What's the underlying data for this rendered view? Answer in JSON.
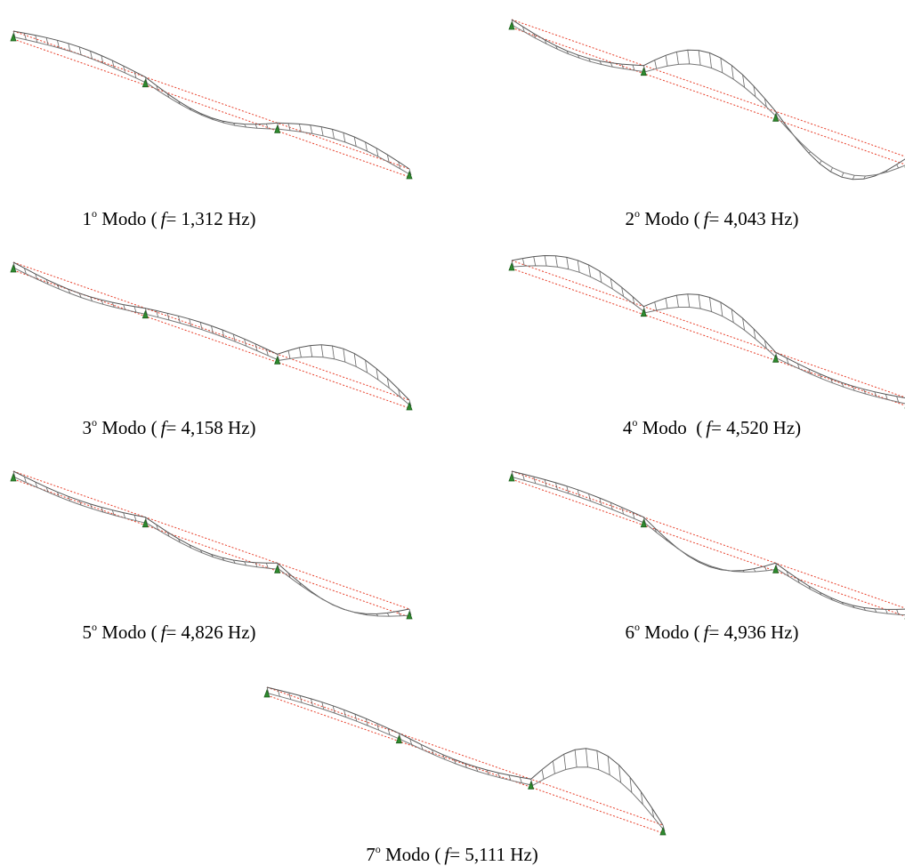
{
  "modes": [
    {
      "number": "1",
      "ordinal": "o",
      "word": "Modo (",
      "symbol": "f",
      "frequency": "= 1,312 Hz)"
    },
    {
      "number": "2",
      "ordinal": "o",
      "word": "Modo (",
      "symbol": "f",
      "frequency": "= 4,043 Hz)"
    },
    {
      "number": "3",
      "ordinal": "o",
      "word": "Modo (",
      "symbol": "f",
      "frequency": "= 4,158 Hz)"
    },
    {
      "number": "4",
      "ordinal": "o",
      "word": "Modo  (",
      "symbol": "f",
      "frequency": "= 4,520 Hz)"
    },
    {
      "number": "5",
      "ordinal": "o",
      "word": "Modo (",
      "symbol": "f",
      "frequency": "= 4,826 Hz)"
    },
    {
      "number": "6",
      "ordinal": "o",
      "word": "Modo (",
      "symbol": "f",
      "frequency": "= 4,936 Hz)"
    },
    {
      "number": "7",
      "ordinal": "o",
      "word": "Modo (",
      "symbol": "f",
      "frequency": "= 5,111 Hz)"
    }
  ]
}
